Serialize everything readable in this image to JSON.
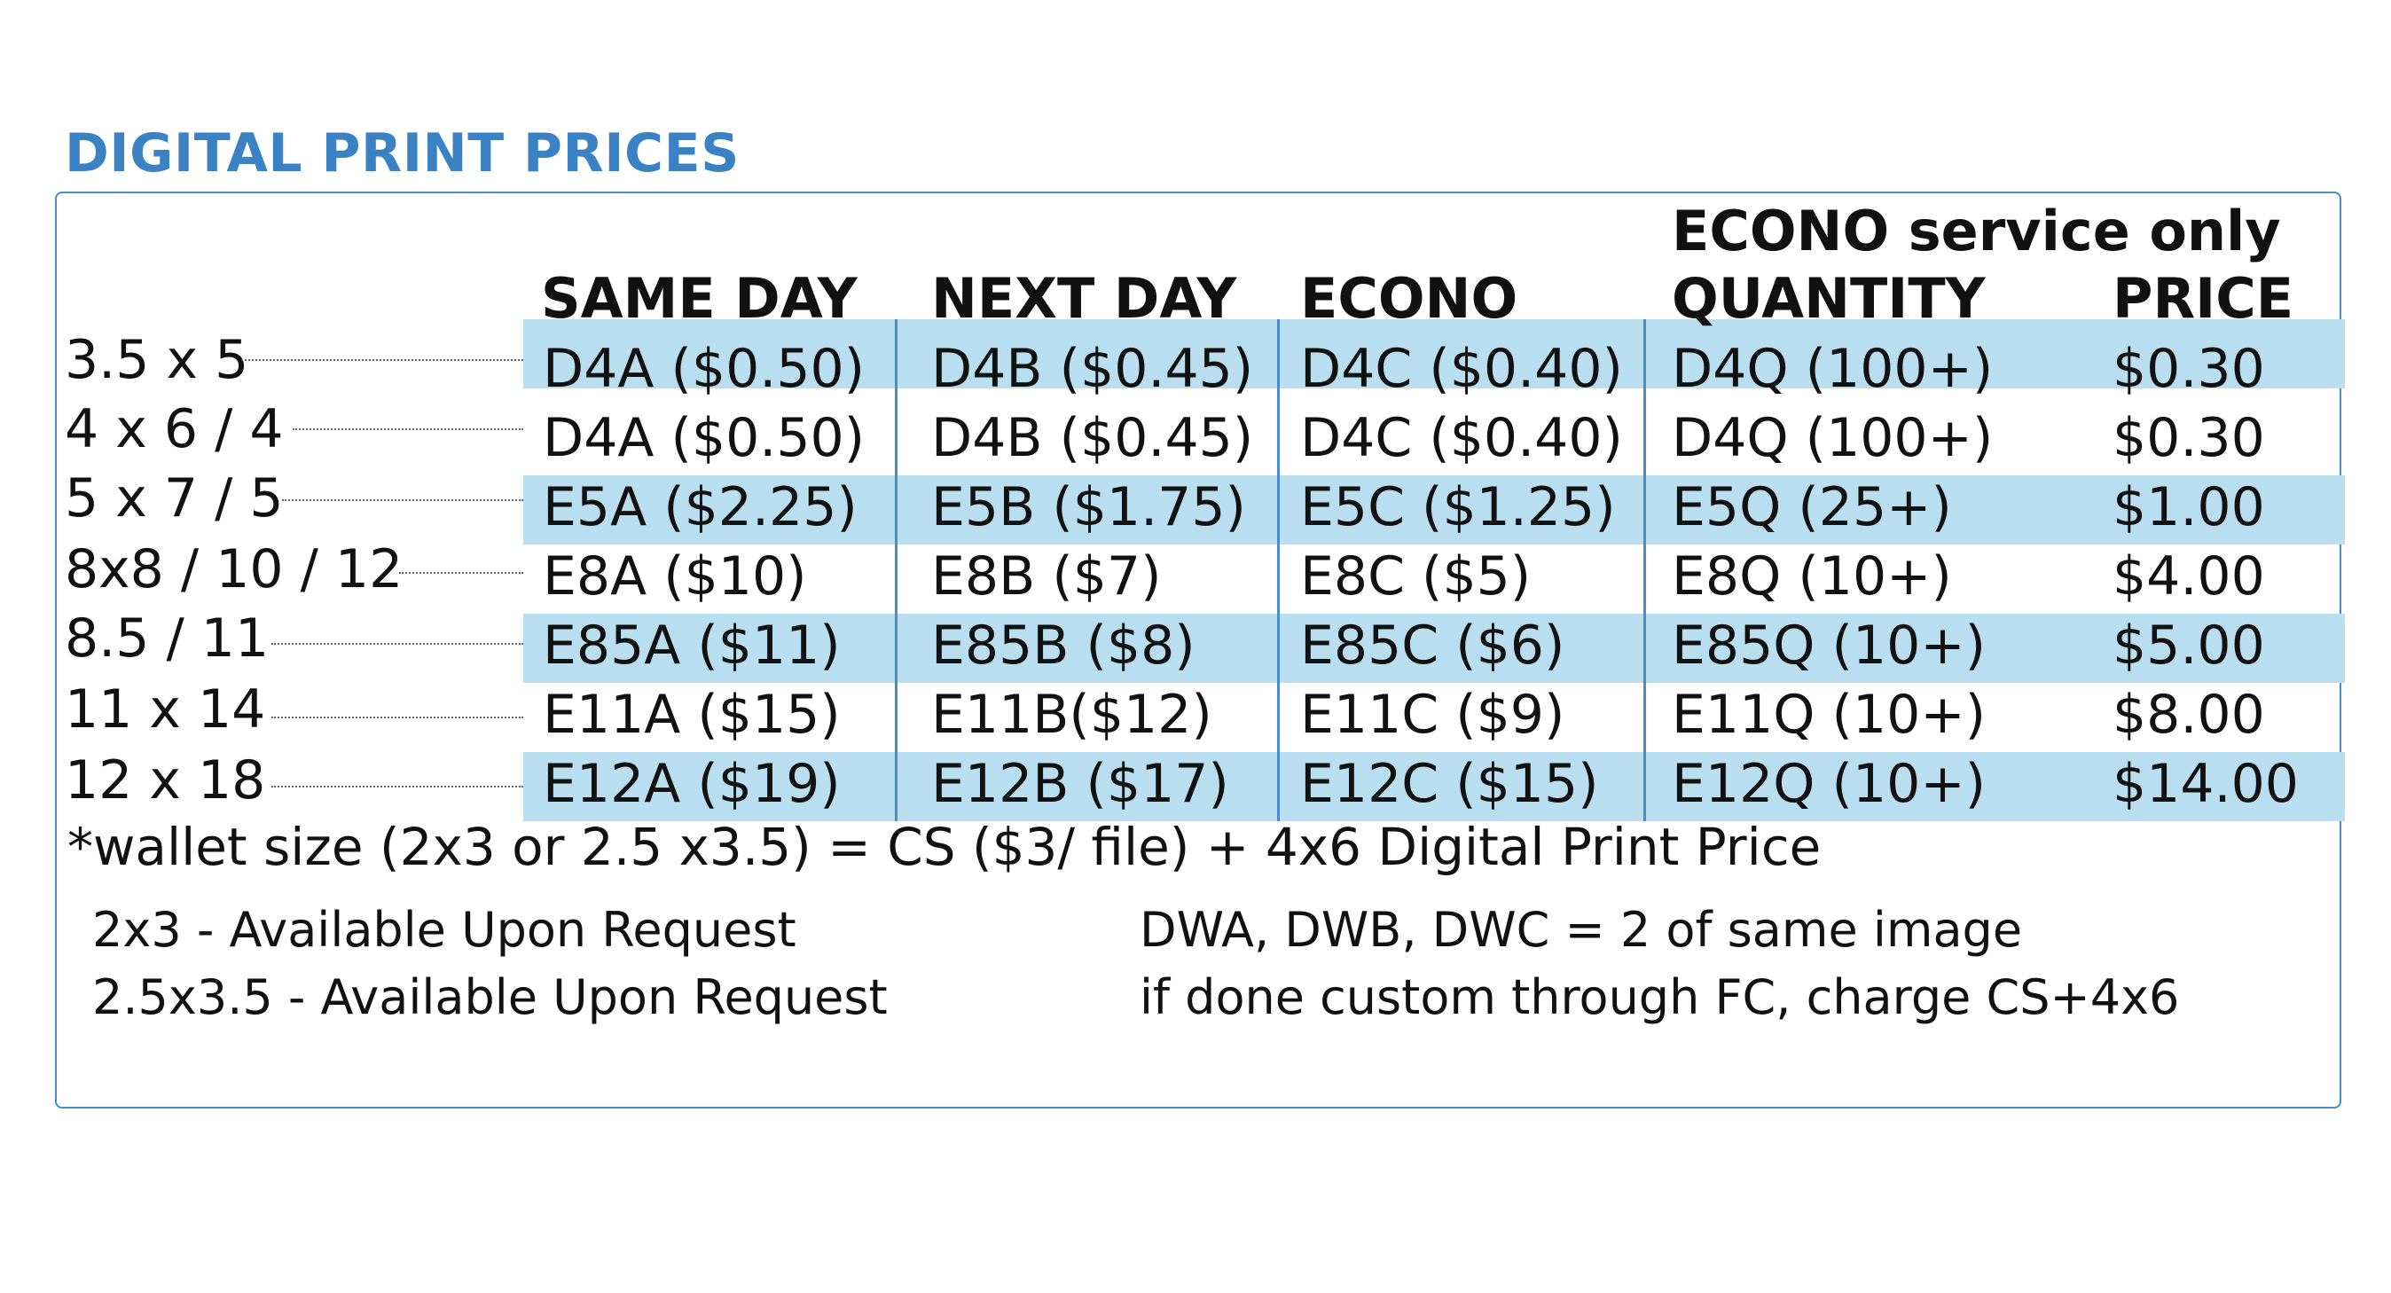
{
  "title": "DIGITAL PRINT PRICES",
  "econo_service_label": "ECONO service only",
  "headers": {
    "same_day": "SAME DAY",
    "next_day": "NEXT DAY",
    "econo": "ECONO",
    "quantity": "QUANTITY",
    "price": "PRICE"
  },
  "rows": [
    {
      "size": "3.5 x 5",
      "same_day": "D4A ($0.50)",
      "next_day": "D4B ($0.45)",
      "econo": "D4C ($0.40)",
      "quantity": "D4Q  (100+)",
      "price": "$0.30"
    },
    {
      "size": "4 x 6 / 4",
      "same_day": "D4A ($0.50)",
      "next_day": "D4B ($0.45)",
      "econo": "D4C ($0.40)",
      "quantity": "D4Q  (100+)",
      "price": "$0.30"
    },
    {
      "size": "5 x 7 / 5",
      "same_day": "E5A ($2.25)",
      "next_day": "E5B ($1.75)",
      "econo": "E5C ($1.25)",
      "quantity": "E5Q  (25+)",
      "price": "$1.00"
    },
    {
      "size": "8x8 / 10 / 12",
      "same_day": "E8A ($10)",
      "next_day": "E8B ($7)",
      "econo": "E8C ($5)",
      "quantity": "E8Q  (10+)",
      "price": "$4.00"
    },
    {
      "size": "8.5 / 11",
      "same_day": "E85A ($11)",
      "next_day": "E85B ($8)",
      "econo": "E85C ($6)",
      "quantity": "E85Q (10+)",
      "price": "$5.00"
    },
    {
      "size": "11 x 14",
      "same_day": "E11A ($15)",
      "next_day": "E11B($12)",
      "econo": "E11C ($9)",
      "quantity": "E11Q  (10+)",
      "price": "$8.00"
    },
    {
      "size": "12 x 18",
      "same_day": "E12A ($19)",
      "next_day": "E12B ($17)",
      "econo": "E12C ($15)",
      "quantity": "E12Q (10+)",
      "price": "$14.00"
    }
  ],
  "footnote": "*wallet size (2x3 or 2.5 x3.5) = CS ($3/ file) + 4x6 Digital Print Price",
  "notes": {
    "left_1": "2x3 - Available Upon Request",
    "left_2": "2.5x3.5 - Available Upon Request",
    "right_1": "DWA, DWB, DWC = 2 of same image",
    "right_2": "if done custom through FC, charge CS+4x6"
  },
  "colors": {
    "title": "#3b82c4",
    "band": "#b8def0",
    "rule": "#4a8cc8"
  }
}
